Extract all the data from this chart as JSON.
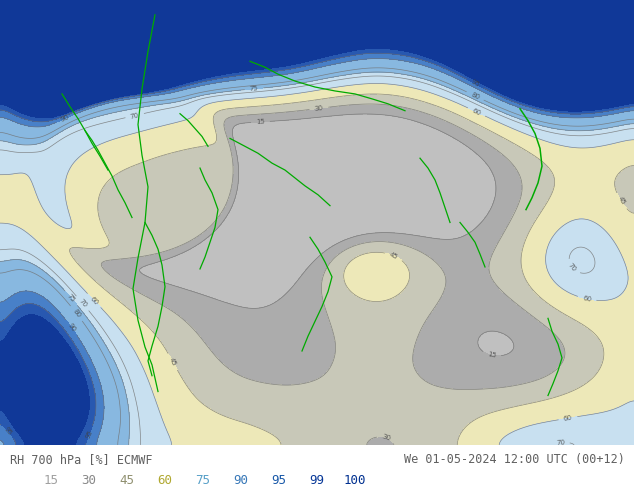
{
  "title_left": "RH 700 hPa [%] ECMWF",
  "title_right": "We 01-05-2024 12:00 UTC (00+12)",
  "legend_values": [
    15,
    30,
    45,
    60,
    75,
    90,
    95,
    99,
    100
  ],
  "colorbar_levels": [
    0,
    15,
    30,
    45,
    60,
    75,
    90,
    95,
    99,
    105
  ],
  "colorbar_colors": [
    "#c8c8c8",
    "#aaaaaa",
    "#d8d8c0",
    "#f0e890",
    "#c8e8f8",
    "#90c0e8",
    "#5090d0",
    "#2860b8",
    "#1040a8"
  ],
  "legend_text_colors": [
    "#a0a0a0",
    "#888888",
    "#909070",
    "#b0a830",
    "#58a0c8",
    "#3878b8",
    "#1858a8",
    "#083898",
    "#003090"
  ],
  "bg_color": "#ffffff",
  "text_color": "#606060",
  "fig_width": 6.34,
  "fig_height": 4.9,
  "dpi": 100,
  "map_colors": {
    "gray_light": "#d0d0d0",
    "gray_mid": "#b8b8b8",
    "gray_dark": "#989898",
    "blue_pale": "#c8dff0",
    "blue_light": "#a0c8e8",
    "blue_mid": "#6090d0",
    "blue_dark": "#3060b8",
    "blue_deep": "#1840a0",
    "yellow_pale": "#f0eecc",
    "yellow": "#e8d888",
    "green_coast": "#00aa00"
  }
}
